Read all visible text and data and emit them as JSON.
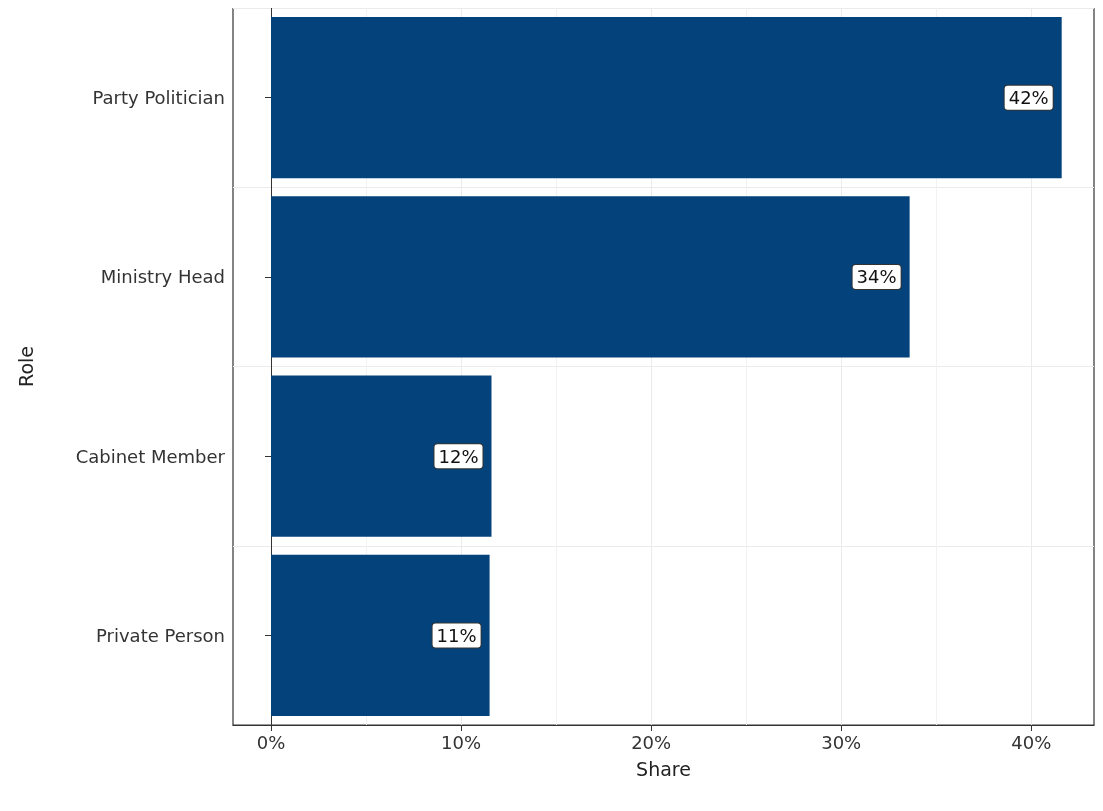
{
  "chart_data": {
    "type": "bar",
    "orientation": "horizontal",
    "xlabel": "Share",
    "ylabel": "Role",
    "categories": [
      "Party Politician",
      "Ministry Head",
      "Cabinet Member",
      "Private Person"
    ],
    "values": [
      41.6,
      33.6,
      11.6,
      11.5
    ],
    "value_labels": [
      "42%",
      "34%",
      "12%",
      "11%"
    ],
    "color": "#03427a",
    "xlim": [
      -2,
      43.3
    ],
    "xticks": [
      {
        "value": 0,
        "label": "0%"
      },
      {
        "value": 10,
        "label": "10%"
      },
      {
        "value": 20,
        "label": "20%"
      },
      {
        "value": 30,
        "label": "30%"
      },
      {
        "value": 40,
        "label": "40%"
      }
    ],
    "grid": true
  }
}
